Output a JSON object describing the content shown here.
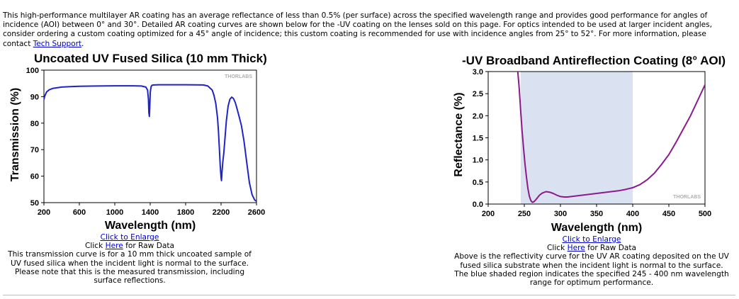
{
  "intro": {
    "text_before_link": "This high-performance multilayer AR coating has an average reflectance of less than 0.5% (per surface) across the specified wavelength range and provides good performance for angles of incidence (AOI) between 0° and 30°. Detailed AR coating curves are shown below for the -UV coating on the lenses sold on this page. For optics intended to be used at larger incident angles, consider ordering a custom coating optimized for a 45° angle of incidence; this custom coating is recommended for use with incidence angles from 25° to 52°. For more information, please contact ",
    "link": "Tech Support",
    "text_after_link": "."
  },
  "charts": [
    {
      "enlarge_link": "Click to Enlarge",
      "raw_prefix": "Click ",
      "raw_link": "Here",
      "raw_suffix": " for Raw Data",
      "caption": "This transmission curve is for a 10 mm thick uncoated sample of UV fused silica when the incident light is normal to the surface. Please note that this is the measured transmission, including surface reflections.",
      "watermark": "THORLABS"
    },
    {
      "enlarge_link": "Click to Enlarge",
      "raw_prefix": "Click ",
      "raw_link": "Here",
      "raw_suffix": " for Raw Data",
      "caption": "Above is the reflectivity curve for the UV AR coating deposited on the UV fused silica substrate when the incident light is normal to the surface. The blue shaded region indicates the specified 245 - 400 nm wavelength range for optimum performance.",
      "watermark": "THORLABS"
    }
  ],
  "chart_data": [
    {
      "type": "line",
      "title": "Uncoated UV Fused Silica (10 mm Thick)",
      "xlabel": "Wavelength (nm)",
      "ylabel": "Transmission (%)",
      "xlim": [
        200,
        2600
      ],
      "ylim": [
        50,
        100
      ],
      "xticks": [
        200,
        600,
        1000,
        1400,
        1800,
        2200,
        2600
      ],
      "yticks": [
        50,
        60,
        70,
        80,
        90,
        100
      ],
      "grid": false,
      "line_color": "#1f24c8",
      "series": [
        {
          "x": [
            200,
            210,
            230,
            260,
            300,
            400,
            500,
            600,
            800,
            1000,
            1200,
            1300,
            1350,
            1370,
            1380,
            1385,
            1390,
            1395,
            1400,
            1410,
            1420,
            1440,
            1500,
            1600,
            1800,
            2000,
            2050,
            2100,
            2120,
            2140,
            2160,
            2170,
            2180,
            2190,
            2200,
            2205,
            2210,
            2220,
            2230,
            2240,
            2260,
            2280,
            2300,
            2320,
            2340,
            2360,
            2380,
            2400,
            2430,
            2460,
            2490,
            2520,
            2550,
            2580,
            2600
          ],
          "y": [
            89,
            90.3,
            91.8,
            92.6,
            93.1,
            93.6,
            93.8,
            93.9,
            94.0,
            94.1,
            94.1,
            94.0,
            93.6,
            92.5,
            89,
            84,
            82.5,
            86,
            91.5,
            93.8,
            94.3,
            94.4,
            94.5,
            94.5,
            94.5,
            94.4,
            94.0,
            92.5,
            90.5,
            87.5,
            82,
            77,
            71,
            64,
            59.5,
            58.3,
            61.5,
            65.5,
            68.5,
            72.5,
            81,
            86.5,
            89,
            89.8,
            89.3,
            87.8,
            85.5,
            83,
            79,
            73,
            65,
            57.5,
            53,
            51,
            50.5
          ]
        }
      ]
    },
    {
      "type": "line",
      "title": "-UV Broadband Antireflection Coating (8° AOI)",
      "xlabel": "Wavelength (nm)",
      "ylabel": "Reflectance (%)",
      "xlim": [
        200,
        500
      ],
      "ylim": [
        0,
        3
      ],
      "xticks": [
        200,
        250,
        300,
        350,
        400,
        450,
        500
      ],
      "yticks": [
        0.0,
        0.5,
        1.0,
        1.5,
        2.0,
        2.5,
        3.0
      ],
      "grid": false,
      "shaded_region": [
        245,
        400
      ],
      "shade_color": "#dae2f2",
      "line_color": "#8b1a8b",
      "series": [
        {
          "x": [
            241,
            243,
            245,
            247,
            249,
            251,
            253,
            255,
            257,
            259,
            261,
            263,
            265,
            268,
            271,
            275,
            280,
            285,
            290,
            295,
            300,
            305,
            310,
            315,
            320,
            330,
            340,
            350,
            360,
            370,
            380,
            390,
            400,
            410,
            420,
            430,
            440,
            450,
            460,
            470,
            480,
            490,
            500
          ],
          "y": [
            3.0,
            2.6,
            2.1,
            1.65,
            1.25,
            0.9,
            0.6,
            0.35,
            0.18,
            0.08,
            0.04,
            0.05,
            0.08,
            0.14,
            0.2,
            0.25,
            0.28,
            0.27,
            0.24,
            0.2,
            0.17,
            0.16,
            0.16,
            0.17,
            0.18,
            0.2,
            0.22,
            0.24,
            0.26,
            0.28,
            0.3,
            0.33,
            0.37,
            0.44,
            0.55,
            0.7,
            0.9,
            1.12,
            1.4,
            1.7,
            2.0,
            2.35,
            2.7
          ]
        }
      ]
    }
  ]
}
